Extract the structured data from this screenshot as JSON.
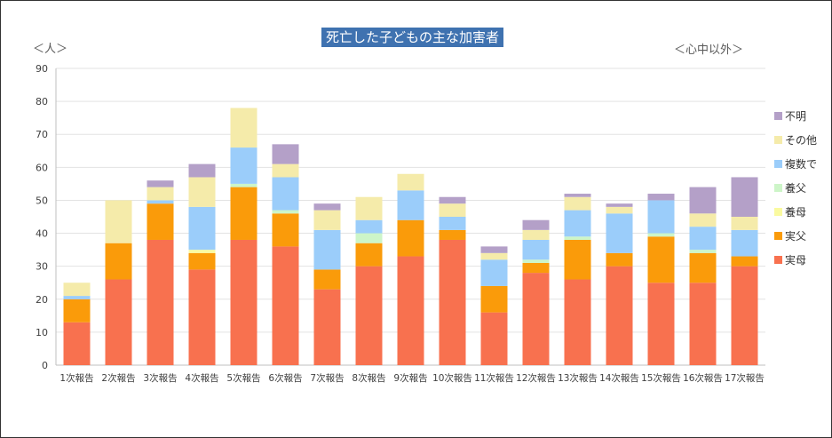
{
  "chart_data": {
    "type": "bar",
    "stacked": true,
    "title": "死亡した子どもの主な加害者",
    "unit_left": "＜人＞",
    "unit_right": "＜心中以外＞",
    "ylim": [
      0,
      90
    ],
    "yticks": [
      0,
      10,
      20,
      30,
      40,
      50,
      60,
      70,
      80,
      90
    ],
    "grid": true,
    "legend_position": "right",
    "categories": [
      "1次報告",
      "2次報告",
      "3次報告",
      "4次報告",
      "5次報告",
      "6次報告",
      "7次報告",
      "8次報告",
      "9次報告",
      "10次報告",
      "11次報告",
      "12次報告",
      "13次報告",
      "14次報告",
      "15次報告",
      "16次報告",
      "17次報告"
    ],
    "series": [
      {
        "name": "実母",
        "color": "#f8714f",
        "values": [
          13,
          26,
          38,
          29,
          38,
          36,
          23,
          30,
          33,
          38,
          16,
          28,
          26,
          30,
          25,
          25,
          30
        ]
      },
      {
        "name": "実父",
        "color": "#fa9b0a",
        "values": [
          7,
          11,
          11,
          5,
          16,
          10,
          6,
          7,
          11,
          3,
          8,
          3,
          12,
          4,
          14,
          9,
          3
        ]
      },
      {
        "name": "養母",
        "color": "#fafaa0",
        "values": [
          0,
          0,
          0,
          1,
          0,
          0,
          0,
          0,
          0,
          0,
          0,
          0,
          0,
          0,
          0,
          0,
          0
        ]
      },
      {
        "name": "養父",
        "color": "#cdf5c8",
        "values": [
          0,
          0,
          0,
          0,
          1,
          1,
          0,
          3,
          0,
          0,
          0,
          1,
          1,
          0,
          1,
          1,
          0
        ]
      },
      {
        "name": "複数で",
        "color": "#9bcdfa",
        "values": [
          1,
          0,
          1,
          13,
          11,
          10,
          12,
          4,
          9,
          4,
          8,
          6,
          8,
          12,
          10,
          7,
          8
        ]
      },
      {
        "name": "その他",
        "color": "#f5ebaa",
        "values": [
          4,
          13,
          4,
          9,
          12,
          4,
          6,
          7,
          5,
          4,
          2,
          3,
          4,
          2,
          0,
          4,
          4
        ]
      },
      {
        "name": "不明",
        "color": "#b4a0c8",
        "values": [
          0,
          0,
          2,
          4,
          0,
          6,
          2,
          0,
          0,
          2,
          2,
          3,
          1,
          1,
          2,
          8,
          12
        ]
      }
    ]
  }
}
